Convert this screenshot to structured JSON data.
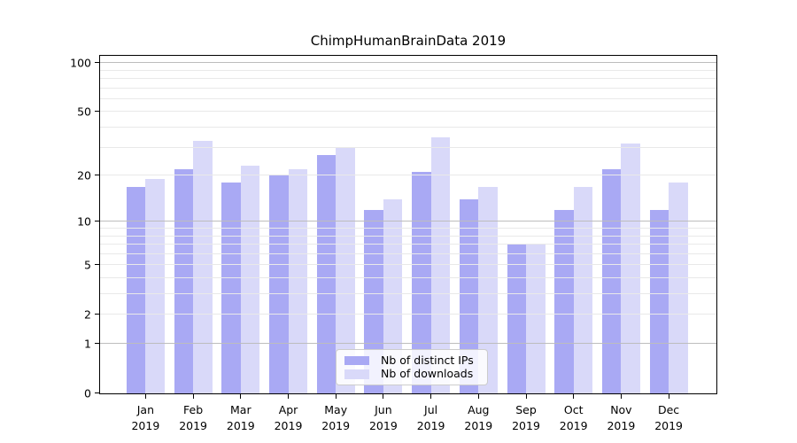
{
  "chart_data": {
    "type": "bar",
    "title": "ChimpHumanBrainData 2019",
    "categories": [
      "Jan",
      "Feb",
      "Mar",
      "Apr",
      "May",
      "Jun",
      "Jul",
      "Aug",
      "Sep",
      "Oct",
      "Nov",
      "Dec"
    ],
    "x_year_line": "2019",
    "series": [
      {
        "name": "Nb of distinct IPs",
        "key": "distinct-ips",
        "color": "#a9a9f4",
        "values": [
          17,
          22,
          18,
          20,
          27,
          12,
          21,
          14,
          7,
          12,
          22,
          12
        ]
      },
      {
        "name": "Nb of downloads",
        "key": "downloads",
        "color": "#d9d9f9",
        "values": [
          19,
          33,
          23,
          22,
          30,
          14,
          35,
          17,
          7,
          17,
          32,
          18
        ]
      }
    ],
    "y_axis": {
      "scale": "log10(value+1)",
      "tick_labels": [
        100,
        50,
        20,
        10,
        5,
        2,
        1,
        0
      ],
      "major_grid_values": [
        1,
        10,
        100
      ],
      "minor_grid_values": [
        2,
        3,
        4,
        5,
        6,
        7,
        8,
        9,
        20,
        30,
        40,
        50,
        60,
        70,
        80,
        90
      ],
      "ylim": [
        0,
        114
      ]
    },
    "grid": true,
    "legend_position": "lower center inside",
    "colors": {
      "major_grid": "#bdbdbd",
      "minor_grid": "#e9e9e9",
      "axis": "#000000",
      "text": "#000000"
    }
  }
}
